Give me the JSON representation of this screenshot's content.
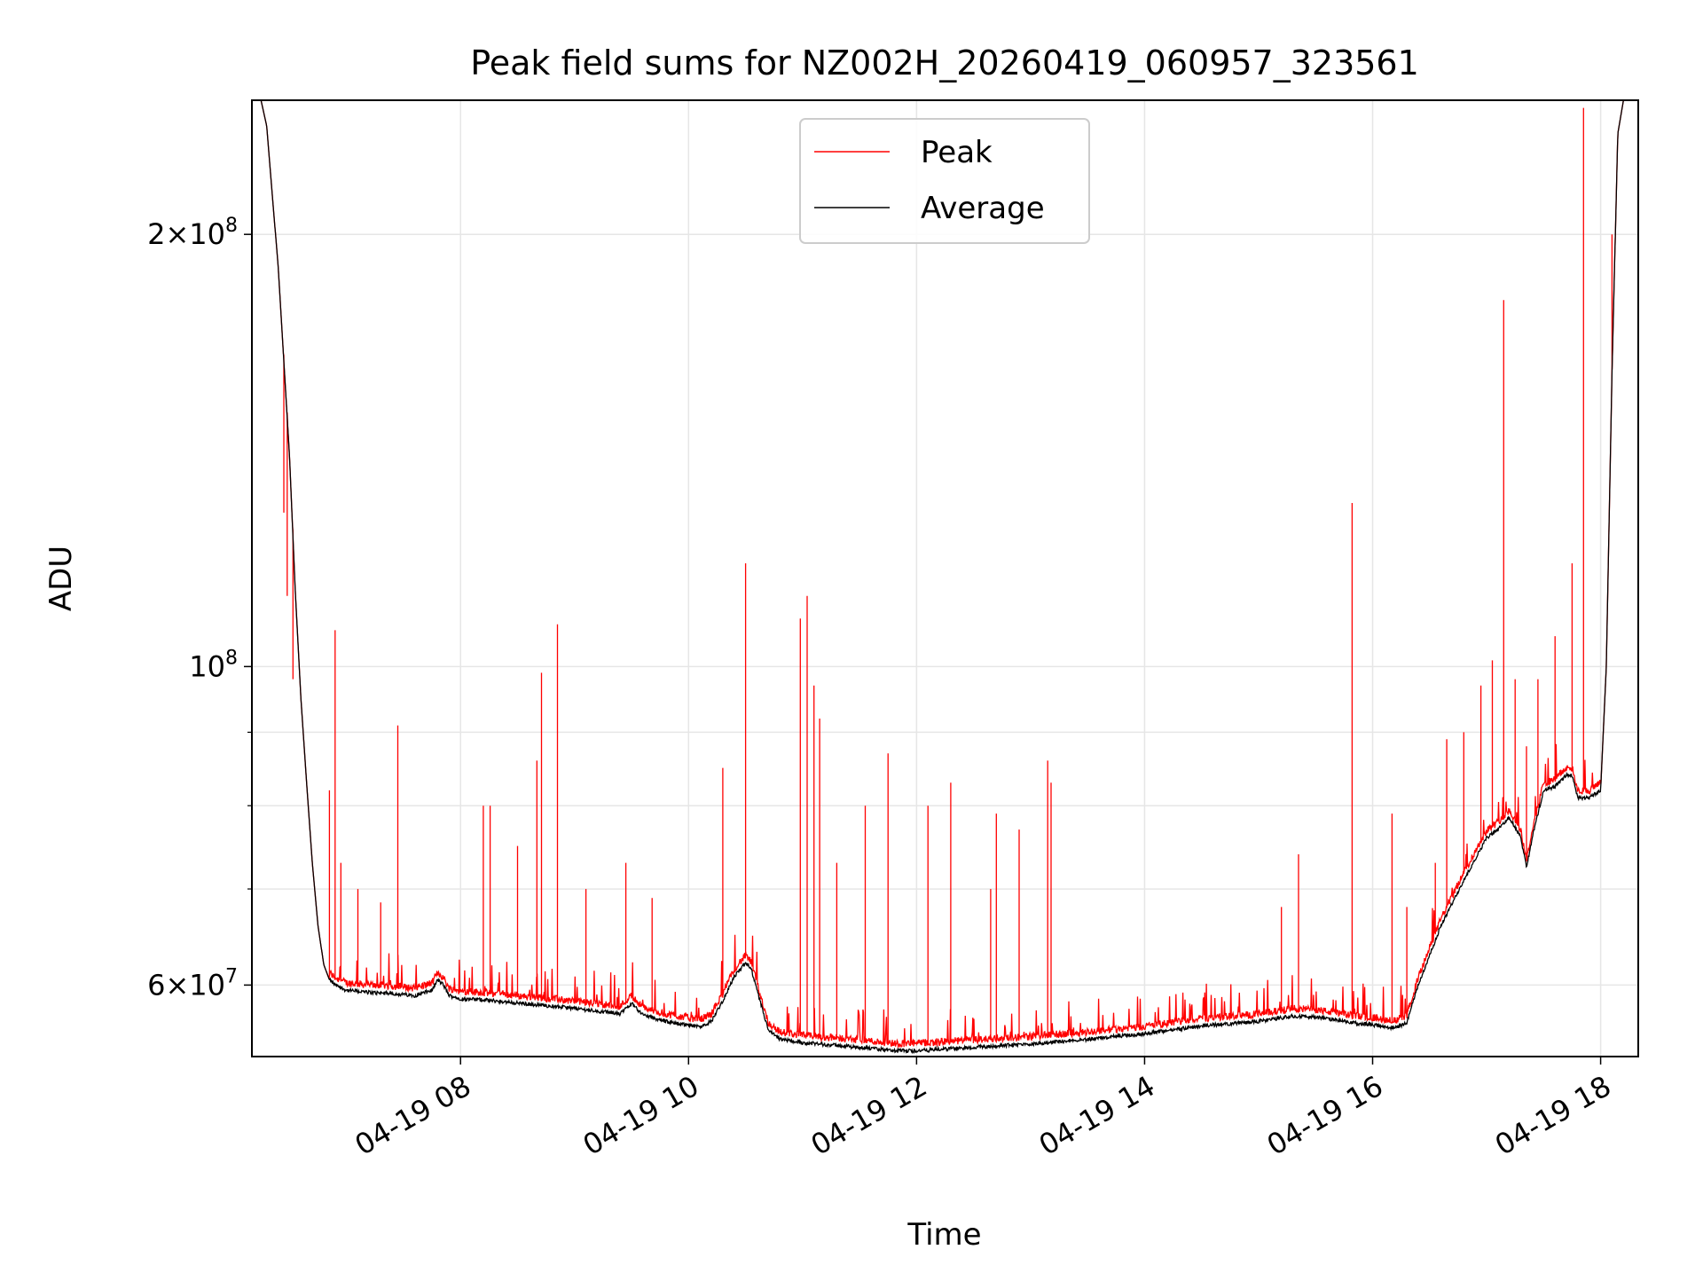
{
  "chart_data": {
    "type": "line",
    "title": "Peak field sums for NZ002H_20260419_060957_323561",
    "xlabel": "Time",
    "ylabel": "ADU",
    "yscale": "log",
    "ylim": [
      53500000,
      248000000
    ],
    "xlim_hours": [
      6.17,
      18.33
    ],
    "grid": true,
    "legend_location": "upper center",
    "x_ticks": [
      {
        "value": 8,
        "label": "04-19 08"
      },
      {
        "value": 10,
        "label": "04-19 10"
      },
      {
        "value": 12,
        "label": "04-19 12"
      },
      {
        "value": 14,
        "label": "04-19 14"
      },
      {
        "value": 16,
        "label": "04-19 16"
      },
      {
        "value": 18,
        "label": "04-19 18"
      }
    ],
    "y_major_ticks": [
      {
        "value": 100000000,
        "base": "10",
        "exp": "8",
        "mant": ""
      },
      {
        "value": 60000000,
        "base": "10",
        "exp": "7",
        "mant": "6"
      },
      {
        "value": 200000000,
        "base": "10",
        "exp": "8",
        "mant": "2"
      }
    ],
    "y_minor_ticks": [
      70000000,
      80000000,
      90000000
    ],
    "series": [
      {
        "name": "Peak",
        "color": "#ff0000"
      },
      {
        "name": "Average",
        "color": "#000000"
      }
    ],
    "average_curve": {
      "t_hours": [
        6.17,
        6.25,
        6.3,
        6.4,
        6.5,
        6.55,
        6.6,
        6.65,
        6.7,
        6.75,
        6.8,
        6.85,
        6.9,
        7.0,
        7.2,
        7.4,
        7.6,
        7.75,
        7.8,
        7.85,
        7.9,
        8.0,
        8.2,
        8.5,
        8.8,
        9.0,
        9.4,
        9.5,
        9.6,
        9.8,
        10.1,
        10.2,
        10.3,
        10.4,
        10.5,
        10.55,
        10.6,
        10.7,
        10.8,
        11.0,
        11.5,
        11.8,
        12.0,
        12.5,
        13.0,
        13.5,
        14.0,
        14.5,
        15.0,
        15.3,
        15.5,
        15.8,
        16.0,
        16.2,
        16.3,
        16.4,
        16.6,
        16.8,
        17.0,
        17.1,
        17.2,
        17.3,
        17.35,
        17.4,
        17.5,
        17.6,
        17.7,
        17.75,
        17.8,
        17.9,
        18.0,
        18.05,
        18.1,
        18.15,
        18.2,
        18.33
      ],
      "adu": [
        248000000,
        248000000,
        238000000,
        190000000,
        140000000,
        113000000,
        95000000,
        83000000,
        73000000,
        66000000,
        62000000,
        60500000,
        60000000,
        59500000,
        59300000,
        59200000,
        59000000,
        59500000,
        60500000,
        60000000,
        59000000,
        58700000,
        58600000,
        58300000,
        58000000,
        57800000,
        57300000,
        58300000,
        57200000,
        56600000,
        56100000,
        56600000,
        58500000,
        60800000,
        62200000,
        61500000,
        59500000,
        55800000,
        55000000,
        54700000,
        54300000,
        54000000,
        54000000,
        54300000,
        54600000,
        55000000,
        55500000,
        56200000,
        56600000,
        57100000,
        57000000,
        56500000,
        56300000,
        56000000,
        56500000,
        60000000,
        66000000,
        71000000,
        76000000,
        77000000,
        78500000,
        76000000,
        72500000,
        76000000,
        82000000,
        82500000,
        84000000,
        84000000,
        81000000,
        81000000,
        82000000,
        100000000,
        160000000,
        235000000,
        248000000,
        248000000
      ]
    },
    "peak_spikes": {
      "t_hours": [
        6.45,
        6.48,
        6.53,
        6.85,
        6.9,
        6.95,
        7.1,
        7.3,
        7.45,
        8.2,
        8.26,
        8.5,
        8.67,
        8.71,
        8.85,
        9.1,
        9.45,
        9.68,
        10.3,
        10.5,
        10.98,
        11.04,
        11.1,
        11.15,
        11.3,
        11.55,
        11.75,
        12.1,
        12.3,
        12.65,
        12.7,
        12.9,
        13.15,
        13.18,
        15.2,
        15.35,
        15.82,
        16.17,
        16.3,
        16.55,
        16.65,
        16.8,
        16.95,
        17.05,
        17.15,
        17.25,
        17.35,
        17.45,
        17.6,
        17.75,
        17.85,
        18.1
      ],
      "adu": [
        128000000,
        112000000,
        98000000,
        82000000,
        106000000,
        73000000,
        70000000,
        68500000,
        91000000,
        80000000,
        80000000,
        75000000,
        86000000,
        99000000,
        107000000,
        70000000,
        73000000,
        69000000,
        85000000,
        118000000,
        108000000,
        112000000,
        97000000,
        92000000,
        73000000,
        80000000,
        87000000,
        80000000,
        83000000,
        70000000,
        79000000,
        77000000,
        86000000,
        83000000,
        68000000,
        74000000,
        130000000,
        79000000,
        68000000,
        73000000,
        89000000,
        90000000,
        97000000,
        101000000,
        180000000,
        98000000,
        88000000,
        98000000,
        105000000,
        118000000,
        245000000,
        200000000
      ]
    }
  }
}
